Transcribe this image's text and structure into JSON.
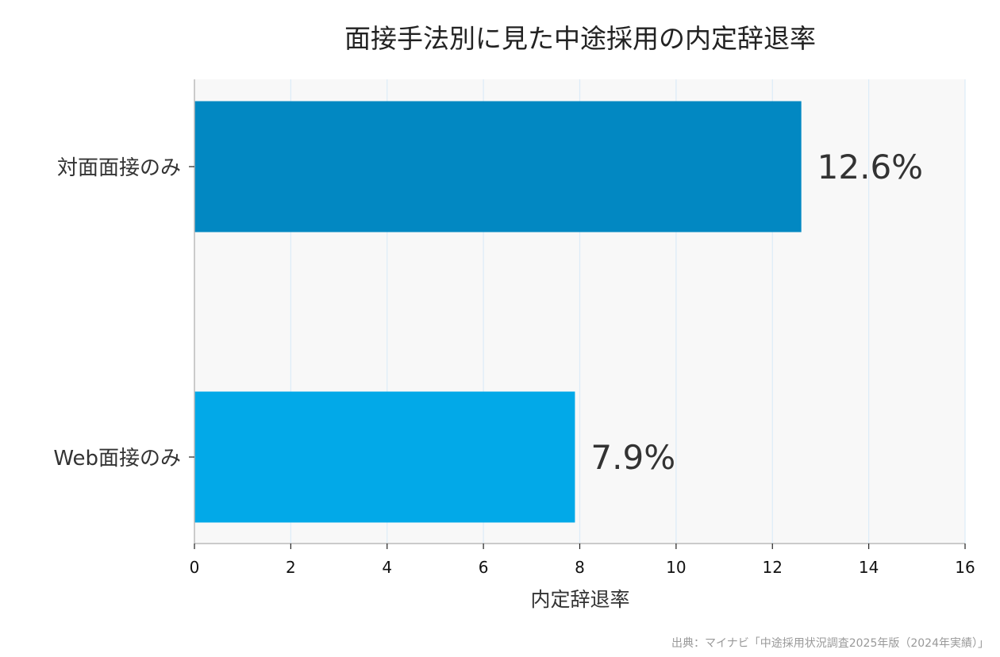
{
  "chart_data": {
    "type": "bar",
    "orientation": "horizontal",
    "title": "面接手法別に見た中途採用の内定辞退率",
    "categories": [
      "対面面接のみ",
      "Web面接のみ"
    ],
    "values": [
      12.6,
      7.9
    ],
    "value_labels": [
      "12.6%",
      "7.9%"
    ],
    "colors": [
      "#0288c2",
      "#02a9e8"
    ],
    "xlabel": "内定辞退率",
    "ylabel": "",
    "xlim": [
      0,
      16
    ],
    "xticks": [
      0,
      2,
      4,
      6,
      8,
      10,
      12,
      14,
      16
    ],
    "grid": true,
    "legend": "none"
  },
  "source": "出典：マイナビ「中途採用状況調査2025年版（2024年実績）」",
  "style": {
    "plot_background": "#f8f8f8",
    "grid_color": "#dcecf8",
    "axis_color": "#bbbbbb"
  }
}
